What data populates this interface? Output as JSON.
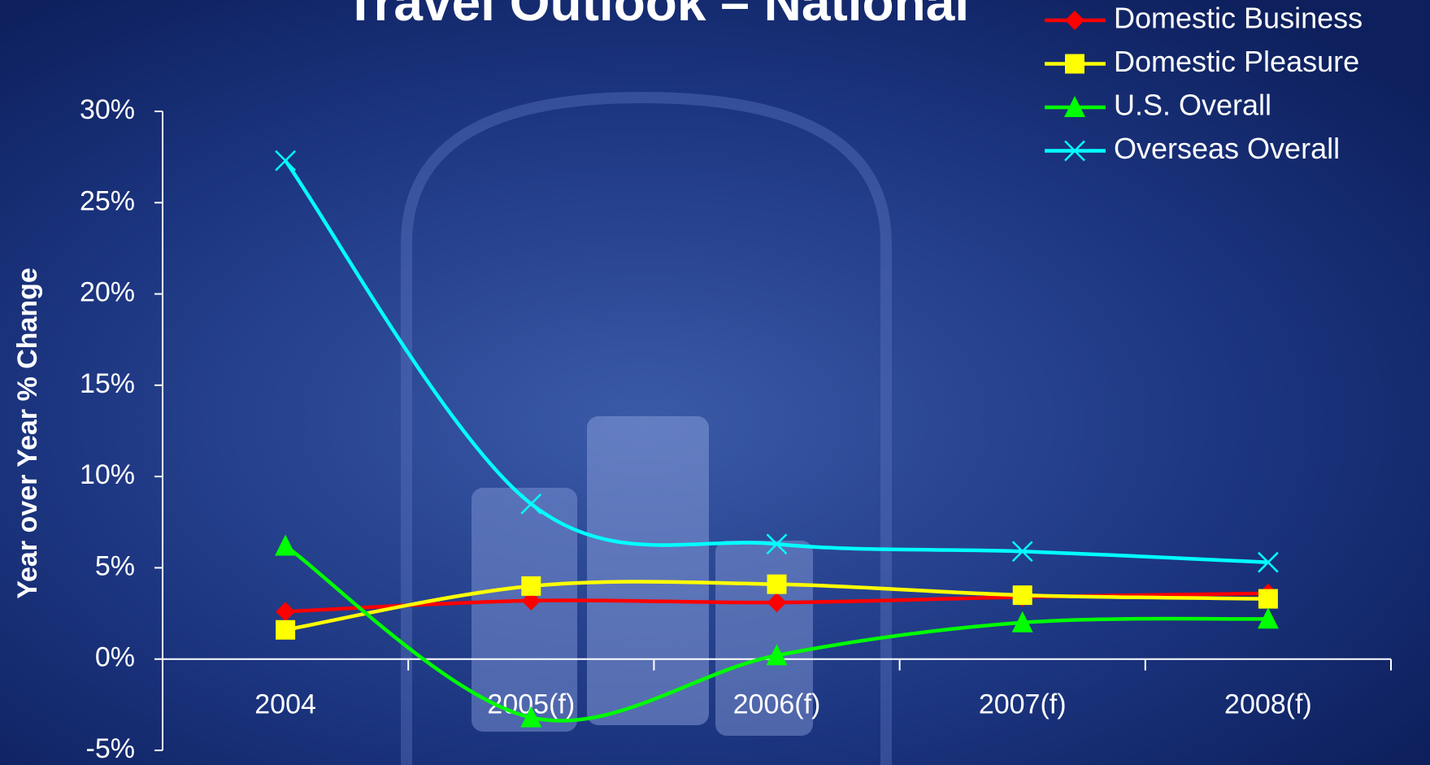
{
  "chart_data": {
    "type": "line",
    "title": "Travel Outlook – National",
    "y_label": "Year over Year % Change",
    "categories": [
      "2004",
      "2005(f)",
      "2006(f)",
      "2007(f)",
      "2008(f)"
    ],
    "series": [
      {
        "name": "Domestic Business",
        "color": "#ff0000",
        "marker": "diamond",
        "values": [
          2.6,
          3.2,
          3.1,
          3.4,
          3.6
        ]
      },
      {
        "name": "Domestic Pleasure",
        "color": "#ffff00",
        "marker": "square",
        "values": [
          1.6,
          4.0,
          4.1,
          3.5,
          3.3
        ]
      },
      {
        "name": "U.S. Overall",
        "color": "#00ff00",
        "marker": "triangle",
        "values": [
          6.2,
          -3.2,
          0.2,
          2.0,
          2.2
        ]
      },
      {
        "name": "Overseas Overall",
        "color": "#00ffff",
        "marker": "x",
        "values": [
          27.3,
          8.5,
          6.3,
          5.9,
          5.3
        ]
      }
    ],
    "ylim": [
      -5,
      30
    ],
    "yticks": [
      {
        "value": -5,
        "label": "-5%"
      },
      {
        "value": 0,
        "label": "0%"
      },
      {
        "value": 5,
        "label": "5%"
      },
      {
        "value": 10,
        "label": "10%"
      },
      {
        "value": 15,
        "label": "15%"
      },
      {
        "value": 20,
        "label": "20%"
      },
      {
        "value": 25,
        "label": "25%"
      },
      {
        "value": 30,
        "label": "30%"
      }
    ],
    "smooth": true,
    "legend": "top-right"
  }
}
